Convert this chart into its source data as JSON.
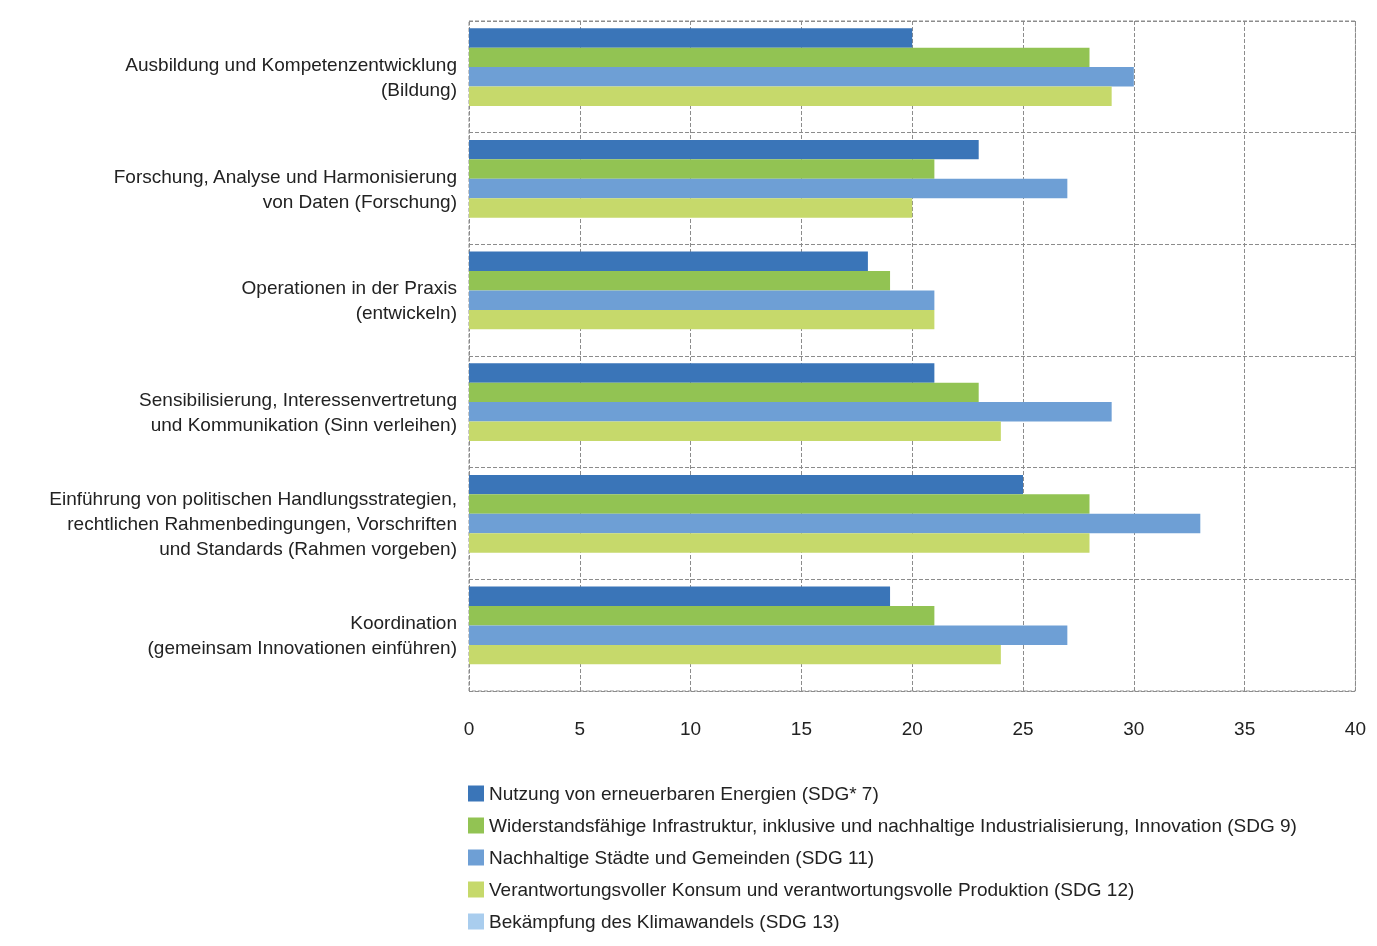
{
  "chart_data": {
    "type": "bar",
    "orientation": "horizontal",
    "categories": [
      "Ausbildung und Kompetenzentwicklung\n(Bildung)",
      "Forschung, Analyse und Harmonisierung\nvon Daten (Forschung)",
      "Operationen in der Praxis\n(entwickeln)",
      "Sensibilisierung, Interessenvertretung\nund Kommunikation (Sinn verleihen)",
      "Einführung von politischen Handlungsstrategien,\nrechtlichen Rahmenbedingungen, Vorschriften\nund Standards (Rahmen vorgeben)",
      "Koordination\n(gemeinsam Innovationen einführen)"
    ],
    "series": [
      {
        "name": "Nutzung von erneuerbaren Energien (SDG* 7)",
        "color": "#3a75b8",
        "values": [
          20,
          23,
          18,
          21,
          25,
          19
        ]
      },
      {
        "name": "Widerstandsfähige Infrastruktur, inklusive und nachhaltige Industrialisierung, Innovation (SDG 9)",
        "color": "#92c353",
        "values": [
          28,
          21,
          19,
          23,
          28,
          21
        ]
      },
      {
        "name": "Nachhaltige Städte und Gemeinden (SDG 11)",
        "color": "#6e9fd5",
        "values": [
          30,
          27,
          21,
          29,
          33,
          27
        ]
      },
      {
        "name": "Verantwortungsvoller Konsum und verantwortungsvolle Produktion (SDG 12)",
        "color": "#c6d96b",
        "values": [
          29,
          20,
          21,
          24,
          28,
          24
        ]
      },
      {
        "name": "Bekämpfung des Klimawandels (SDG 13)",
        "color": "#a9cdee",
        "values": [
          0,
          0,
          0,
          0,
          0,
          0
        ]
      }
    ],
    "xlim": [
      0,
      40
    ],
    "xticks": [
      0,
      5,
      10,
      15,
      20,
      25,
      30,
      35,
      40
    ],
    "grid": true,
    "legend": "bottom"
  }
}
